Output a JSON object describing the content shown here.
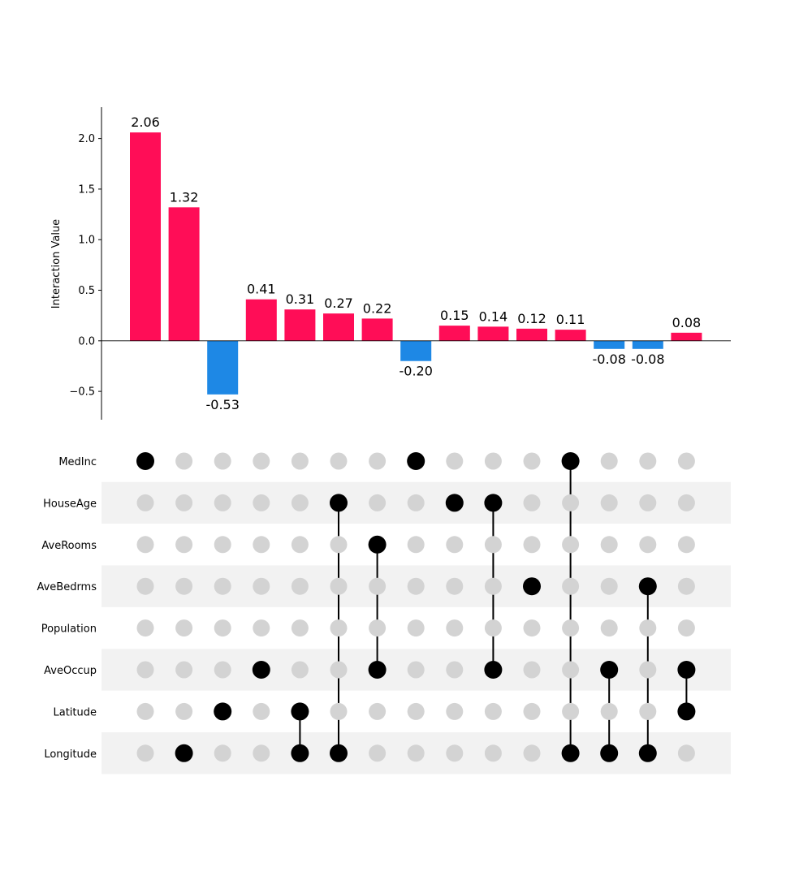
{
  "chart_data": [
    {
      "type": "bar",
      "ylabel": "Interaction Value",
      "ylim": [
        -0.78,
        2.31
      ],
      "yticks": [
        "2.0",
        "1.5",
        "1.0",
        "0.5",
        "0.0",
        "−0.5"
      ],
      "ytick_values": [
        2.0,
        1.5,
        1.0,
        0.5,
        0.0,
        -0.5
      ],
      "values": [
        2.06,
        1.32,
        -0.53,
        0.41,
        0.31,
        0.27,
        0.22,
        -0.2,
        0.15,
        0.14,
        0.12,
        0.11,
        -0.08,
        -0.08,
        0.08
      ],
      "value_labels": [
        "2.06",
        "1.32",
        "-0.53",
        "0.41",
        "0.31",
        "0.27",
        "0.22",
        "-0.20",
        "0.15",
        "0.14",
        "0.12",
        "0.11",
        "-0.08",
        "-0.08",
        "0.08"
      ],
      "positive_color": "#ff0d57",
      "negative_color": "#1e88e5"
    },
    {
      "type": "matrix",
      "features": [
        "MedInc",
        "HouseAge",
        "AveRooms",
        "AveBedrms",
        "Population",
        "AveOccup",
        "Latitude",
        "Longitude"
      ],
      "interactions": [
        [
          "MedInc"
        ],
        [
          "Longitude"
        ],
        [
          "Latitude"
        ],
        [
          "AveOccup"
        ],
        [
          "Latitude",
          "Longitude"
        ],
        [
          "HouseAge",
          "Longitude"
        ],
        [
          "AveRooms",
          "AveOccup"
        ],
        [
          "MedInc"
        ],
        [
          "HouseAge"
        ],
        [
          "HouseAge",
          "AveOccup"
        ],
        [
          "AveBedrms"
        ],
        [
          "MedInc",
          "Longitude"
        ],
        [
          "AveOccup",
          "Longitude"
        ],
        [
          "AveBedrms",
          "Longitude"
        ],
        [
          "AveOccup",
          "Latitude"
        ]
      ],
      "active_color": "#000000",
      "inactive_color": "#d3d3d3",
      "stripe_color": "#f2f2f2"
    }
  ]
}
